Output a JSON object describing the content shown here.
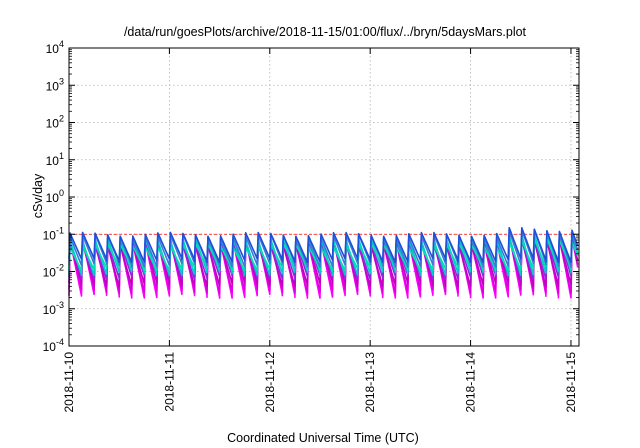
{
  "chart_data": {
    "type": "line",
    "title": "/data/run/goesPlots/archive/2018-11-15/01:00/flux/../bryn/5daysMars.plot",
    "xlabel": "Coordinated Universal Time (UTC)",
    "ylabel": "cSv/day",
    "x_tick_labels": [
      "2018-11-10",
      "2018-11-11",
      "2018-11-12",
      "2018-11-13",
      "2018-11-14",
      "2018-11-15"
    ],
    "xlim_days": [
      0,
      5.08
    ],
    "y_scale": "log",
    "ylim": [
      0.0001,
      10000
    ],
    "y_ticks": [
      {
        "base": "10",
        "exp": "-4"
      },
      {
        "base": "10",
        "exp": "-3"
      },
      {
        "base": "10",
        "exp": "-2"
      },
      {
        "base": "10",
        "exp": "-1"
      },
      {
        "base": "10",
        "exp": "0"
      },
      {
        "base": "10",
        "exp": "1"
      },
      {
        "base": "10",
        "exp": "2"
      },
      {
        "base": "10",
        "exp": "3"
      },
      {
        "base": "10",
        "exp": "4"
      }
    ],
    "grid": true,
    "reference_line": {
      "y": 0.1,
      "color": "#ff0000",
      "dash": true
    },
    "cycle_period_days": 0.125,
    "series": [
      {
        "color": "#ff00ff",
        "peak": 0.07,
        "trough": 0.0022
      },
      {
        "color": "#dd00dd",
        "peak": 0.06,
        "trough": 0.003
      },
      {
        "color": "#c000c0",
        "peak": 0.055,
        "trough": 0.0045
      },
      {
        "color": "#8a2be2",
        "peak": 0.06,
        "trough": 0.007
      },
      {
        "color": "#00cccc",
        "peak": 0.075,
        "trough": 0.009
      },
      {
        "color": "#00e0b0",
        "peak": 0.05,
        "trough": 0.012
      },
      {
        "color": "#3a7bd5",
        "peak": 0.09,
        "trough": 0.015
      },
      {
        "color": "#1e4fd8",
        "peak": 0.1,
        "trough": 0.02
      }
    ]
  }
}
